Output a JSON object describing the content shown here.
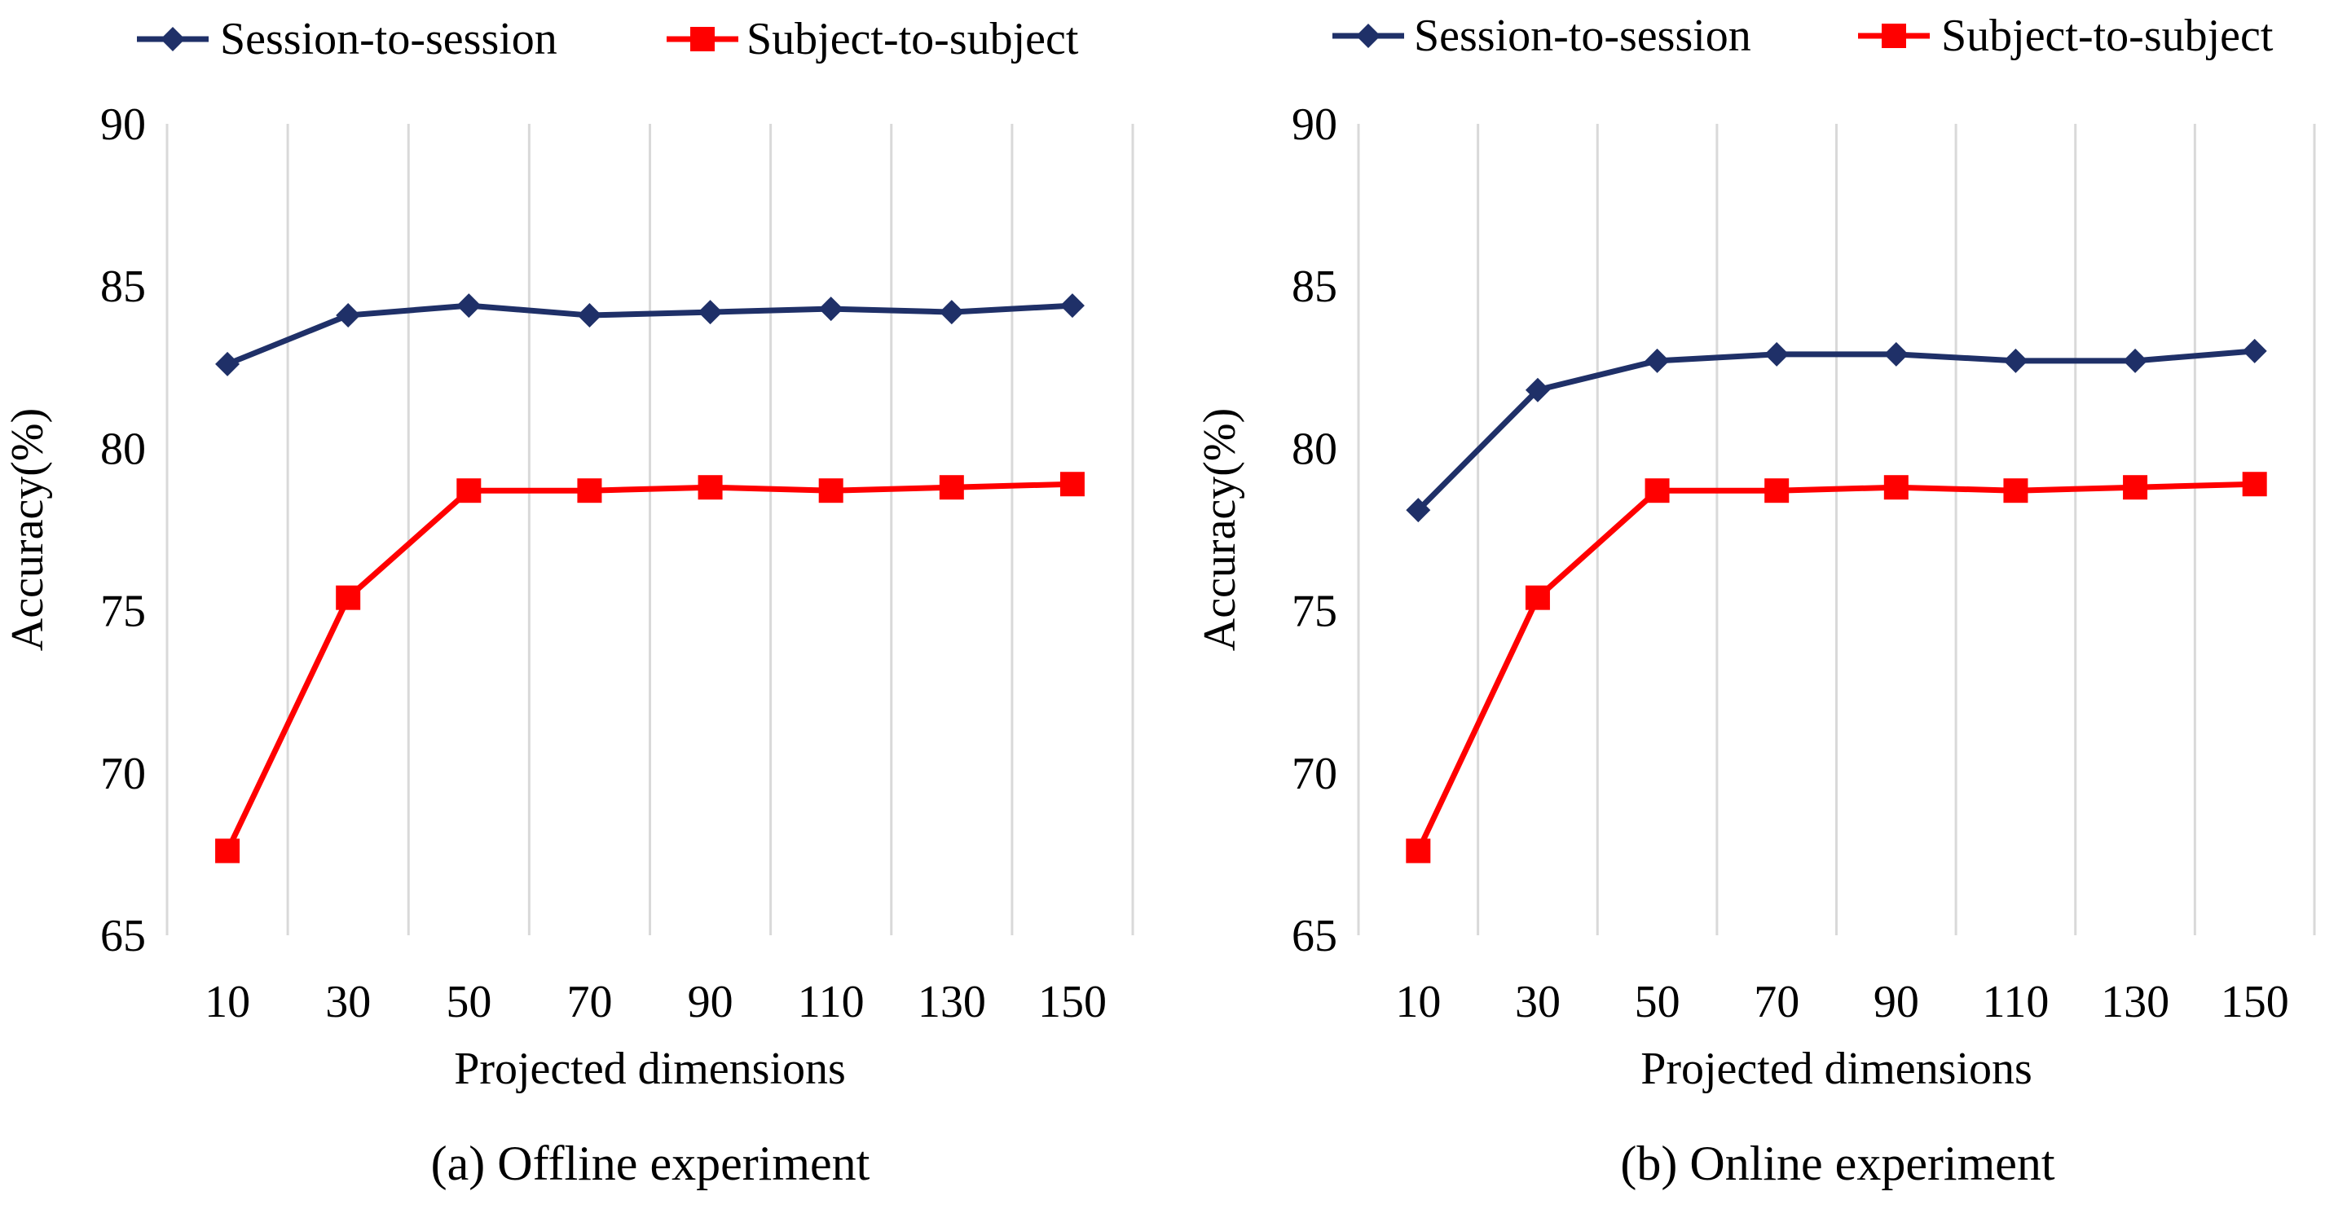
{
  "colors": {
    "session": "#1f3068",
    "subject": "#ff0000",
    "grid": "#d9d9d9",
    "text": "#000000"
  },
  "chart_data": [
    {
      "type": "line",
      "caption": "(a) Offline experiment",
      "xlabel": "Projected dimensions",
      "ylabel": "Accuracy(%)",
      "ylim": [
        65,
        90
      ],
      "yticks": [
        "65",
        "70",
        "75",
        "80",
        "85",
        "90"
      ],
      "categories": [
        "10",
        "30",
        "50",
        "70",
        "90",
        "110",
        "130",
        "150"
      ],
      "grid": "vertical",
      "legend_position": "top",
      "series": [
        {
          "name": "Session-to-session",
          "marker": "diamond",
          "values": [
            82.6,
            84.1,
            84.4,
            84.1,
            84.2,
            84.3,
            84.2,
            84.4
          ]
        },
        {
          "name": "Subject-to-subject",
          "marker": "square",
          "values": [
            67.6,
            75.4,
            78.7,
            78.7,
            78.8,
            78.7,
            78.8,
            78.9
          ]
        }
      ]
    },
    {
      "type": "line",
      "caption": "(b) Online experiment",
      "xlabel": "Projected dimensions",
      "ylabel": "Accuracy(%)",
      "ylim": [
        65,
        90
      ],
      "yticks": [
        "65",
        "70",
        "75",
        "80",
        "85",
        "90"
      ],
      "categories": [
        "10",
        "30",
        "50",
        "70",
        "90",
        "110",
        "130",
        "150"
      ],
      "grid": "vertical",
      "legend_position": "top",
      "series": [
        {
          "name": "Session-to-session",
          "marker": "diamond",
          "values": [
            78.1,
            81.8,
            82.7,
            82.9,
            82.9,
            82.7,
            82.7,
            83.0
          ]
        },
        {
          "name": "Subject-to-subject",
          "marker": "square",
          "values": [
            67.6,
            75.4,
            78.7,
            78.7,
            78.8,
            78.7,
            78.8,
            78.9
          ]
        }
      ]
    }
  ]
}
